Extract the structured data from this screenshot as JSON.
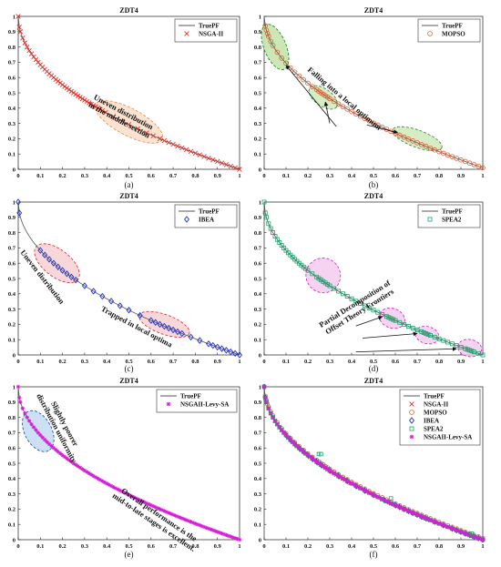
{
  "figure": {
    "panels": [
      {
        "id": "a",
        "caption": "(a)",
        "title": "ZDT4",
        "legend": [
          {
            "label": "TruePF",
            "marker": "line",
            "color": "#555555"
          },
          {
            "label": "NSGA-II",
            "marker": "x",
            "color": "#e0302a"
          }
        ],
        "annotations": [
          {
            "text_lines": [
              "Uneven distribution",
              "in the middle section"
            ],
            "fill": "#f9d9c0",
            "stroke": "#e88a50"
          }
        ]
      },
      {
        "id": "b",
        "caption": "(b)",
        "title": "ZDT4",
        "legend": [
          {
            "label": "TruePF",
            "marker": "line",
            "color": "#555555"
          },
          {
            "label": "MOPSO",
            "marker": "circle",
            "color": "#e35a2e"
          }
        ],
        "annotations": [
          {
            "text_lines": [
              "Falling into a local optimum"
            ],
            "fill": "#c8e6b0",
            "stroke": "#1f8a2a"
          }
        ]
      },
      {
        "id": "c",
        "caption": "(c)",
        "title": "ZDT4",
        "legend": [
          {
            "label": "TruePF",
            "marker": "line",
            "color": "#555555"
          },
          {
            "label": "IBEA",
            "marker": "diamond",
            "color": "#1c2ec9"
          }
        ],
        "annotations": [
          {
            "text_lines": [
              "Uneven distribution"
            ],
            "fill": "#f6c9cf",
            "stroke": "#e0202a"
          },
          {
            "text_lines": [
              "Trapped in local optima"
            ],
            "fill": "#f6c9cf",
            "stroke": "#e0202a"
          }
        ]
      },
      {
        "id": "d",
        "caption": "(d)",
        "title": "ZDT4",
        "legend": [
          {
            "label": "TruePF",
            "marker": "line",
            "color": "#555555"
          },
          {
            "label": "SPEA2",
            "marker": "square",
            "color": "#1aa46b"
          }
        ],
        "annotations": [
          {
            "text_lines": [
              "Partial Decomposition of",
              "Offset Theory Frontiers"
            ],
            "fill": "#f3c6ec",
            "stroke": "#d11bc4"
          }
        ]
      },
      {
        "id": "e",
        "caption": "(e)",
        "title": "ZDT4",
        "legend": [
          {
            "label": "TruePF",
            "marker": "line",
            "color": "#555555"
          },
          {
            "label": "NSGAII-Levy-SA",
            "marker": "star",
            "color": "#d51fd5"
          }
        ],
        "annotations": [
          {
            "text_lines": [
              "Slightly poorer",
              "distribution uniformity"
            ],
            "fill": "#b9d7ef",
            "stroke": "#1a3f8a"
          },
          {
            "text_lines": [
              "Overall performance is the",
              "mid-to-late stages is excellent."
            ],
            "fill": "none",
            "stroke": "none"
          }
        ]
      },
      {
        "id": "f",
        "caption": "(f)",
        "title": "ZDT4",
        "legend": [
          {
            "label": "TruePF",
            "marker": "line",
            "color": "#555555"
          },
          {
            "label": "NSGA-II",
            "marker": "x",
            "color": "#e0302a"
          },
          {
            "label": "MOPSO",
            "marker": "circle",
            "color": "#e35a2e"
          },
          {
            "label": "IBEA",
            "marker": "diamond",
            "color": "#1c2ec9"
          },
          {
            "label": "SPEA2",
            "marker": "square",
            "color": "#1aa46b"
          },
          {
            "label": "NSGAII-Levy-SA",
            "marker": "star",
            "color": "#d51fd5"
          }
        ],
        "annotations": []
      }
    ]
  },
  "chart_data": [
    {
      "type": "scatter",
      "panel": "a",
      "title": "ZDT4",
      "xlim": [
        0,
        1
      ],
      "ylim": [
        0,
        1
      ],
      "xticks": [
        "0",
        "0.1",
        "0.2",
        "0.3",
        "0.4",
        "0.5",
        "0.6",
        "0.7",
        "0.8",
        "0.9",
        "1"
      ],
      "yticks": [
        "0",
        "0.1",
        "0.2",
        "0.3",
        "0.4",
        "0.5",
        "0.6",
        "0.7",
        "0.8",
        "0.9",
        "1"
      ],
      "true_front": "y = 1 - sqrt(x), x in [0,1]",
      "series": [
        {
          "name": "NSGA-II",
          "marker": "x",
          "x_values": [
            0,
            0.005,
            0.01,
            0.02,
            0.03,
            0.04,
            0.05,
            0.06,
            0.07,
            0.08,
            0.09,
            0.1,
            0.11,
            0.12,
            0.13,
            0.14,
            0.15,
            0.16,
            0.17,
            0.18,
            0.19,
            0.2,
            0.21,
            0.22,
            0.23,
            0.24,
            0.25,
            0.26,
            0.27,
            0.28,
            0.29,
            0.3,
            0.31,
            0.32,
            0.33,
            0.34,
            0.35,
            0.36,
            0.37,
            0.38,
            0.395,
            0.43,
            0.47,
            0.5,
            0.54,
            0.58,
            0.61,
            0.64,
            0.66,
            0.68,
            0.7,
            0.72,
            0.74,
            0.76,
            0.78,
            0.8,
            0.82,
            0.84,
            0.86,
            0.88,
            0.9,
            0.92,
            0.94,
            0.96,
            0.98,
            1.0
          ]
        }
      ]
    },
    {
      "type": "scatter",
      "panel": "b",
      "title": "ZDT4",
      "xlim": [
        0,
        1
      ],
      "ylim": [
        0,
        1
      ],
      "true_front": "y = 1 - sqrt(x) + 0.01",
      "series": [
        {
          "name": "MOPSO",
          "marker": "circle",
          "x_values": [
            0.005,
            0.01,
            0.015,
            0.02,
            0.03,
            0.04,
            0.06,
            0.08,
            0.1,
            0.12,
            0.14,
            0.16,
            0.18,
            0.2,
            0.22,
            0.24,
            0.25,
            0.26,
            0.27,
            0.28,
            0.29,
            0.3,
            0.32,
            0.34,
            0.36,
            0.38,
            0.4,
            0.42,
            0.44,
            0.46,
            0.48,
            0.5,
            0.52,
            0.54,
            0.56,
            0.58,
            0.6,
            0.62,
            0.64,
            0.66,
            0.68,
            0.7,
            0.72,
            0.74,
            0.76,
            0.78,
            0.8,
            0.82,
            0.84,
            0.86,
            0.88,
            0.9,
            0.92,
            0.94,
            0.96,
            0.98,
            1.0
          ]
        }
      ]
    },
    {
      "type": "scatter",
      "panel": "c",
      "title": "ZDT4",
      "xlim": [
        0,
        1
      ],
      "ylim": [
        0,
        1
      ],
      "true_front": "y = 1 - sqrt(x)",
      "series": [
        {
          "name": "IBEA",
          "marker": "diamond",
          "x_values": [
            0,
            0.005,
            0.1,
            0.12,
            0.14,
            0.16,
            0.18,
            0.2,
            0.22,
            0.24,
            0.26,
            0.3,
            0.34,
            0.38,
            0.42,
            0.46,
            0.5,
            0.55,
            0.6,
            0.62,
            0.64,
            0.66,
            0.68,
            0.7,
            0.72,
            0.74,
            0.78,
            0.82,
            0.86,
            0.88,
            0.9,
            0.92,
            0.94,
            0.96,
            0.98,
            1.0
          ]
        }
      ]
    },
    {
      "type": "scatter",
      "panel": "d",
      "title": "ZDT4",
      "xlim": [
        0,
        1
      ],
      "ylim": [
        0,
        1
      ],
      "true_front": "y = 1 - sqrt(x)",
      "series": [
        {
          "name": "SPEA2",
          "marker": "square",
          "x_values": [
            0,
            0.005,
            0.01,
            0.02,
            0.03,
            0.04,
            0.05,
            0.06,
            0.07,
            0.08,
            0.09,
            0.1,
            0.11,
            0.12,
            0.13,
            0.14,
            0.15,
            0.16,
            0.17,
            0.18,
            0.19,
            0.2,
            0.22,
            0.24,
            0.25,
            0.26,
            0.27,
            0.28,
            0.29,
            0.3,
            0.32,
            0.34,
            0.36,
            0.38,
            0.4,
            0.42,
            0.44,
            0.46,
            0.48,
            0.5,
            0.52,
            0.54,
            0.56,
            0.57,
            0.58,
            0.59,
            0.6,
            0.62,
            0.64,
            0.66,
            0.68,
            0.7,
            0.72,
            0.73,
            0.74,
            0.75,
            0.76,
            0.78,
            0.8,
            0.82,
            0.84,
            0.86,
            0.88,
            0.9,
            0.92,
            0.93,
            0.94,
            0.95,
            0.96,
            0.98,
            1.0
          ]
        }
      ]
    },
    {
      "type": "scatter",
      "panel": "e",
      "title": "ZDT4",
      "xlim": [
        0,
        1
      ],
      "ylim": [
        0,
        1
      ],
      "true_front": "y = 1 - sqrt(x)",
      "series": [
        {
          "name": "NSGAII-Levy-SA",
          "marker": "star",
          "x_values": [
            0,
            0.005,
            0.01,
            0.02,
            0.03,
            0.04,
            0.05,
            0.06,
            0.07,
            0.08,
            0.09,
            0.1,
            0.11,
            0.12,
            0.13,
            0.14,
            0.15,
            0.16,
            0.17,
            0.18,
            0.19,
            0.2,
            0.21,
            0.22,
            0.23,
            0.24,
            0.25,
            0.26,
            0.27,
            0.28,
            0.29,
            0.3,
            0.31,
            0.32,
            0.33,
            0.34,
            0.35,
            0.36,
            0.37,
            0.38,
            0.39,
            0.4,
            0.41,
            0.42,
            0.43,
            0.44,
            0.45,
            0.46,
            0.47,
            0.48,
            0.49,
            0.5,
            0.51,
            0.52,
            0.53,
            0.54,
            0.55,
            0.56,
            0.57,
            0.58,
            0.59,
            0.6,
            0.61,
            0.62,
            0.63,
            0.64,
            0.65,
            0.66,
            0.67,
            0.68,
            0.69,
            0.7,
            0.71,
            0.72,
            0.73,
            0.74,
            0.75,
            0.76,
            0.77,
            0.78,
            0.79,
            0.8,
            0.81,
            0.82,
            0.83,
            0.84,
            0.85,
            0.86,
            0.87,
            0.88,
            0.89,
            0.9,
            0.91,
            0.92,
            0.93,
            0.94,
            0.95,
            0.96,
            0.97,
            0.98,
            0.99,
            1.0
          ]
        }
      ]
    },
    {
      "type": "scatter",
      "panel": "f",
      "title": "ZDT4",
      "xlim": [
        0,
        1
      ],
      "ylim": [
        0,
        1
      ],
      "true_front": "y = 1 - sqrt(x)",
      "series": [
        {
          "name": "NSGA-II",
          "marker": "x"
        },
        {
          "name": "MOPSO",
          "marker": "circle"
        },
        {
          "name": "IBEA",
          "marker": "diamond"
        },
        {
          "name": "SPEA2",
          "marker": "square"
        },
        {
          "name": "NSGAII-Levy-SA",
          "marker": "star"
        }
      ]
    }
  ]
}
